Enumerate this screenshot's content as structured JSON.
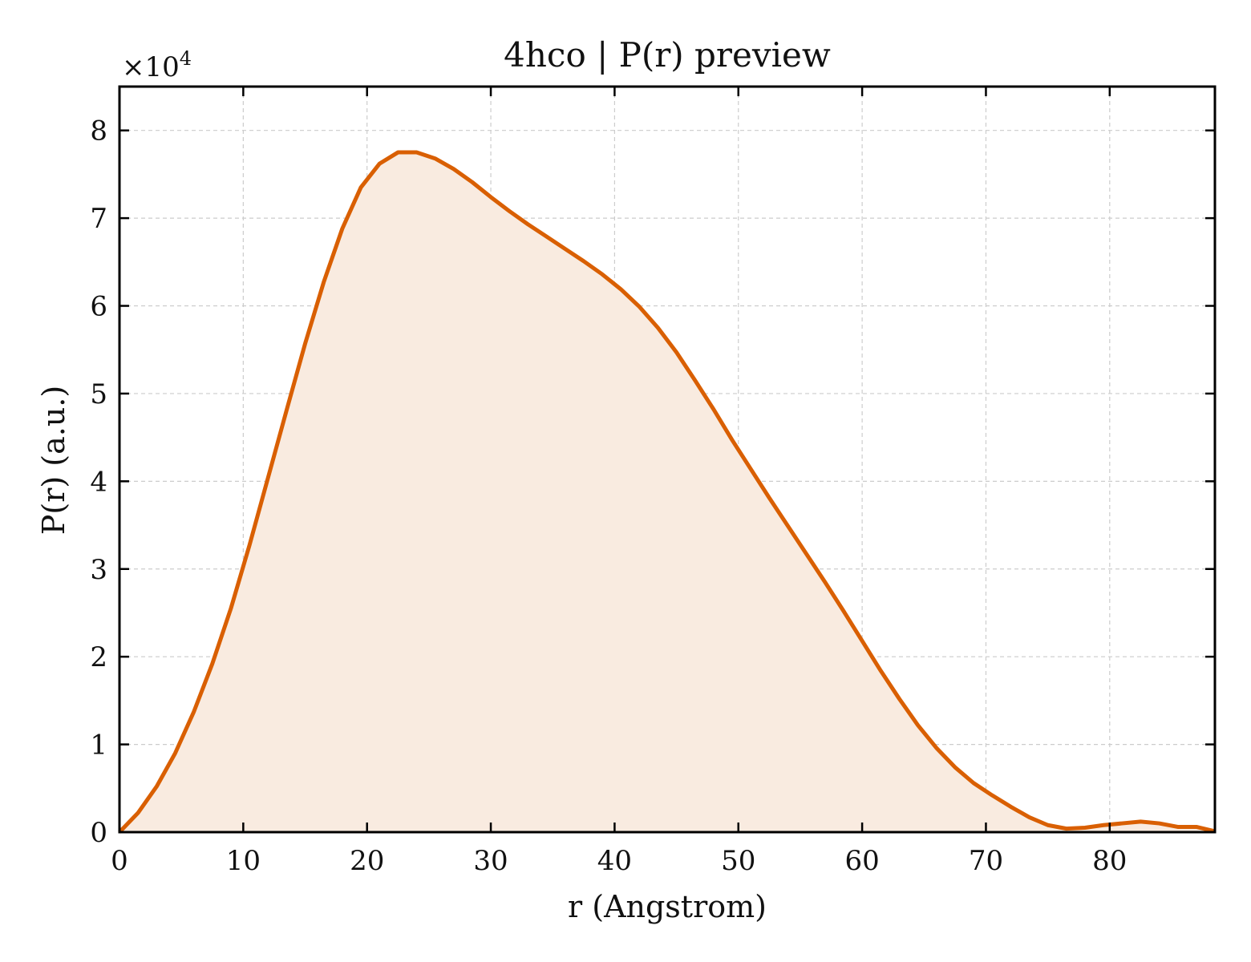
{
  "chart_data": {
    "type": "area",
    "title": "4hco | P(r) preview",
    "xlabel": "r (Angstrom)",
    "ylabel": "P(r) (a.u.)",
    "y_multiplier_label": "×10",
    "y_multiplier_exponent": "4",
    "xlim": [
      0,
      88.5
    ],
    "ylim": [
      0,
      8.5
    ],
    "x_ticks": [
      0,
      10,
      20,
      30,
      40,
      50,
      60,
      70,
      80
    ],
    "y_ticks": [
      0,
      1,
      2,
      3,
      4,
      5,
      6,
      7,
      8
    ],
    "grid": true,
    "line_color": "#d95f02",
    "fill_color": "#f9ebe0",
    "series": [
      {
        "x": [
          0,
          1.5,
          3,
          4.5,
          6,
          7.5,
          9,
          10.5,
          12,
          13.5,
          15,
          16.5,
          18,
          19.5,
          21,
          22.5,
          24,
          25.5,
          27,
          28.5,
          30,
          31.5,
          33,
          34.5,
          36,
          37.5,
          39,
          40.5,
          42,
          43.5,
          45,
          46.5,
          48,
          49.5,
          51,
          52.5,
          54,
          55.5,
          57,
          58.5,
          60,
          61.5,
          63,
          64.5,
          66,
          67.5,
          69,
          70.5,
          72,
          73.5,
          75,
          76.5,
          78,
          79.5,
          81,
          82.5,
          84,
          85.5,
          87,
          88.5
        ],
        "values": [
          0.0,
          0.22,
          0.52,
          0.9,
          1.37,
          1.92,
          2.55,
          3.27,
          4.04,
          4.81,
          5.57,
          6.27,
          6.88,
          7.35,
          7.62,
          7.75,
          7.75,
          7.68,
          7.56,
          7.41,
          7.24,
          7.08,
          6.93,
          6.79,
          6.65,
          6.51,
          6.36,
          6.19,
          5.99,
          5.75,
          5.47,
          5.15,
          4.82,
          4.47,
          4.14,
          3.81,
          3.49,
          3.17,
          2.85,
          2.52,
          2.18,
          1.84,
          1.52,
          1.22,
          0.96,
          0.74,
          0.56,
          0.42,
          0.29,
          0.17,
          0.08,
          0.04,
          0.05,
          0.08,
          0.1,
          0.12,
          0.1,
          0.06,
          0.06,
          0.01
        ]
      }
    ]
  }
}
